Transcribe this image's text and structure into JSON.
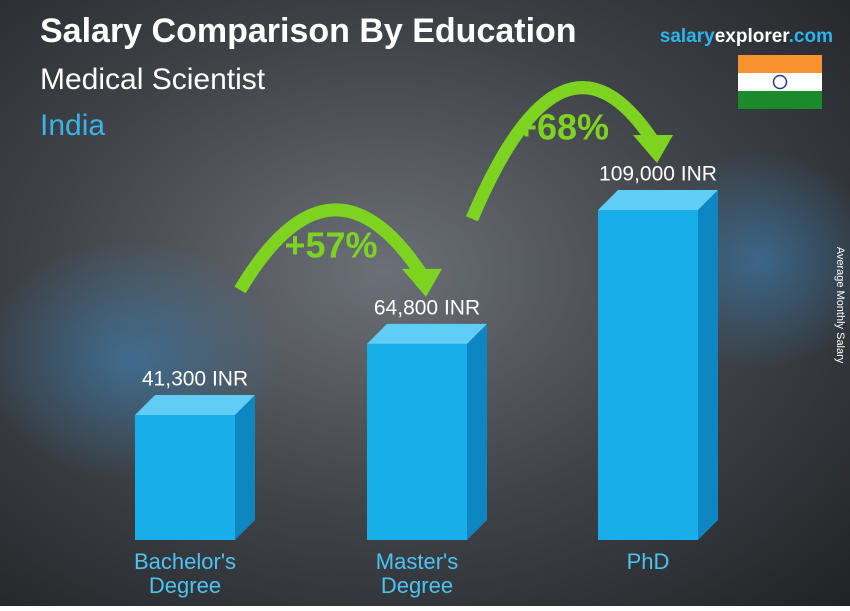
{
  "chart_data": {
    "type": "bar",
    "title": "Salary Comparison By Education",
    "subtitle": "Medical Scientist",
    "country": "India",
    "site": {
      "part1": "salary",
      "part2": "explorer",
      "part3": ".com"
    },
    "axis_label": "Average Monthly Salary",
    "categories": [
      "Bachelor's Degree",
      "Master's Degree",
      "PhD"
    ],
    "values": [
      41300,
      64800,
      109000
    ],
    "value_labels": [
      "41,300 INR",
      "64,800 INR",
      "109,000 INR"
    ],
    "changes": [
      "+57%",
      "+68%"
    ],
    "color": "#18aee9"
  }
}
